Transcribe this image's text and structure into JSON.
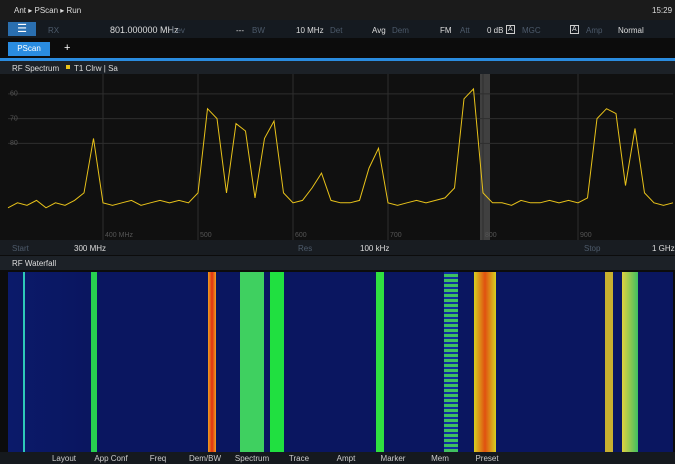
{
  "status_bar": {
    "path": [
      "Ant",
      "PScan",
      "Run"
    ],
    "time": "15:29"
  },
  "settings_row": {
    "rx": "RX",
    "frequency": "801.000000 MHz",
    "lev_label": "Lev",
    "lev_value": "---",
    "bw_label": "BW",
    "bw_value": "10 MHz",
    "det_label": "Det",
    "det_value": "Avg",
    "dem_label": "Dem",
    "dem_value": "FM",
    "att_label": "Att",
    "att_value": "0 dB",
    "att_mode": "A",
    "mgc_label": "MGC",
    "mgc_mode": "A",
    "amp_label": "Amp",
    "amp_value": "Normal"
  },
  "tabs": {
    "active": "PScan",
    "add": "+"
  },
  "spectrum_panel": {
    "title": "RF Spectrum",
    "trace_label": "T1 Clrw | Sa",
    "footer": {
      "start_label": "Start",
      "start_value": "300 MHz",
      "res_label": "Res",
      "res_value": "100 kHz",
      "stop_label": "Stop",
      "stop_value": "1 GHz"
    },
    "chart_data": {
      "type": "line",
      "color": "#e8c21a",
      "grid": true,
      "x": [
        300,
        310,
        320,
        330,
        340,
        350,
        360,
        370,
        380,
        390,
        400,
        410,
        420,
        430,
        440,
        450,
        460,
        470,
        480,
        490,
        500,
        510,
        520,
        530,
        540,
        550,
        560,
        570,
        580,
        590,
        600,
        610,
        620,
        630,
        640,
        650,
        660,
        670,
        680,
        690,
        700,
        710,
        720,
        730,
        740,
        750,
        760,
        770,
        780,
        790,
        800,
        810,
        820,
        830,
        840,
        850,
        860,
        870,
        880,
        890,
        900,
        910,
        920,
        930,
        940,
        950,
        960,
        970,
        980,
        990,
        1000
      ],
      "values": [
        106,
        104,
        105,
        103,
        106,
        104,
        105,
        103,
        100,
        78,
        104,
        105,
        104,
        103,
        105,
        104,
        103,
        104,
        103,
        104,
        100,
        66,
        70,
        100,
        72,
        75,
        102,
        78,
        71,
        100,
        104,
        103,
        98,
        92,
        103,
        104,
        104,
        103,
        90,
        82,
        104,
        105,
        104,
        103,
        104,
        103,
        102,
        98,
        62,
        58,
        100,
        104,
        104,
        105,
        103,
        104,
        104,
        103,
        104,
        103,
        104,
        102,
        70,
        66,
        68,
        97,
        74,
        100,
        104,
        105,
        104
      ],
      "xlim": [
        300,
        1000
      ],
      "xticks": [
        {
          "value": 400,
          "label": "400 MHz"
        },
        500,
        600,
        700,
        800,
        900
      ],
      "ylim": [
        52,
        119
      ],
      "yticks": [
        60,
        70,
        80
      ]
    }
  },
  "waterfall_panel": {
    "title": "RF Waterfall"
  },
  "softkeys": [
    "Layout",
    "App Conf",
    "Freq",
    "Dem/BW",
    "Spectrum",
    "Trace",
    "Ampt",
    "Marker",
    "Mem",
    "Preset"
  ]
}
